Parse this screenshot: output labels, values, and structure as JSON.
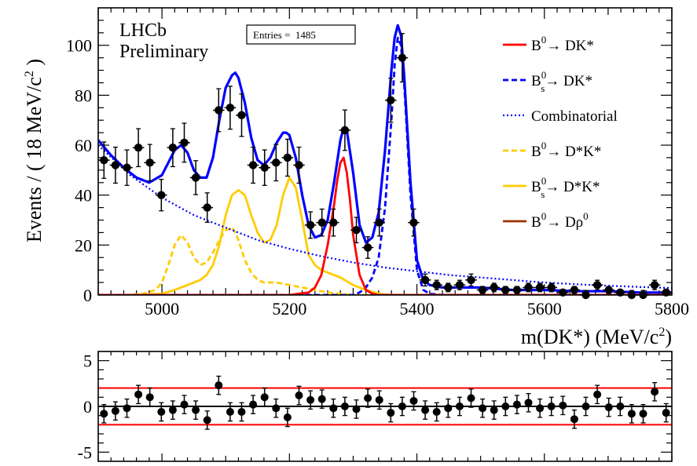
{
  "chart_data": [
    {
      "type": "scatter",
      "title": "",
      "annotations": [
        "LHCb",
        "Preliminary"
      ],
      "stats_box": "Entries =  1485",
      "xlabel": "m(DK*) (MeV/c2)",
      "ylabel": "Events / ( 18 MeV/c2 )",
      "xlim": [
        4900,
        5800
      ],
      "ylim": [
        0,
        115
      ],
      "x_ticks": [
        5000,
        5200,
        5400,
        5600,
        5800
      ],
      "y_ticks": [
        0,
        20,
        40,
        60,
        80,
        100
      ],
      "legend_position": "right",
      "legend": [
        {
          "label": "B0→ DK*",
          "color": "#ff0000",
          "style": "solid"
        },
        {
          "label": "Bs0→ DK*",
          "color": "#0000ff",
          "style": "dashed"
        },
        {
          "label": "Combinatorial",
          "color": "#0000ff",
          "style": "dotted"
        },
        {
          "label": "B0→ D*K*",
          "color": "#ffcc00",
          "style": "dashed"
        },
        {
          "label": "Bs0→ D*K*",
          "color": "#ffcc00",
          "style": "solid"
        },
        {
          "label": "B0→ Dρ0",
          "color": "#993300",
          "style": "solid"
        }
      ],
      "data_points": {
        "x": [
          4909,
          4927,
          4945,
          4963,
          4981,
          4999,
          5017,
          5035,
          5053,
          5071,
          5089,
          5107,
          5125,
          5143,
          5161,
          5179,
          5197,
          5215,
          5233,
          5251,
          5269,
          5287,
          5305,
          5323,
          5341,
          5359,
          5377,
          5395,
          5413,
          5431,
          5449,
          5467,
          5485,
          5503,
          5521,
          5539,
          5557,
          5575,
          5593,
          5611,
          5629,
          5647,
          5665,
          5683,
          5701,
          5719,
          5737,
          5755,
          5773,
          5791
        ],
        "y": [
          54,
          52,
          51,
          59,
          53,
          40,
          59,
          61,
          47,
          35,
          74,
          75,
          72,
          52,
          51,
          53,
          55,
          52,
          28,
          29,
          29,
          66,
          26,
          19,
          29,
          78,
          95,
          29,
          6,
          4,
          3,
          4,
          6,
          2,
          3,
          2,
          2,
          3,
          3,
          3,
          1,
          2,
          0,
          4,
          2,
          1,
          0,
          0,
          4,
          1
        ],
        "error_low": [
          7.3,
          7.2,
          7.1,
          7.6,
          7.3,
          6.3,
          7.6,
          7.8,
          6.8,
          5.9,
          8.6,
          8.6,
          8.5,
          7.2,
          7.1,
          7.3,
          7.4,
          7.2,
          5.3,
          5.4,
          5.4,
          8.1,
          5.1,
          4.3,
          5.4,
          8.8,
          9.7,
          5.4,
          2.4,
          1.9,
          1.7,
          1.9,
          2.4,
          1.4,
          1.7,
          1.4,
          1.4,
          1.7,
          1.7,
          1.7,
          1.0,
          1.4,
          0,
          1.9,
          1.4,
          1.0,
          0,
          0,
          1.9,
          1.0
        ],
        "error_high": [
          7.3,
          7.2,
          7.1,
          7.6,
          7.3,
          6.3,
          7.6,
          7.8,
          6.8,
          5.9,
          8.6,
          8.6,
          8.5,
          7.2,
          7.1,
          7.3,
          7.4,
          7.2,
          5.3,
          5.4,
          5.4,
          8.1,
          5.1,
          4.3,
          5.4,
          8.8,
          9.7,
          5.4,
          2.4,
          1.9,
          1.7,
          1.9,
          2.4,
          1.4,
          1.7,
          1.4,
          1.4,
          1.7,
          1.7,
          1.7,
          1.0,
          1.4,
          1.8,
          1.9,
          1.4,
          1.0,
          1.8,
          1.8,
          1.9,
          1.0
        ]
      },
      "curves": [
        {
          "name": "Total fit",
          "color": "#0000ff",
          "style": "solid",
          "x": [
            4900,
            4920,
            4940,
            4960,
            4980,
            5000,
            5010,
            5020,
            5030,
            5040,
            5050,
            5060,
            5070,
            5080,
            5090,
            5100,
            5110,
            5115,
            5120,
            5130,
            5140,
            5150,
            5160,
            5170,
            5180,
            5190,
            5195,
            5200,
            5210,
            5220,
            5230,
            5240,
            5250,
            5260,
            5270,
            5280,
            5285,
            5290,
            5300,
            5310,
            5320,
            5330,
            5340,
            5350,
            5360,
            5365,
            5370,
            5375,
            5380,
            5390,
            5400,
            5410,
            5420,
            5440,
            5460,
            5500,
            5550,
            5600,
            5650,
            5700,
            5750,
            5800
          ],
          "y": [
            62,
            56,
            51,
            47,
            45,
            48,
            53,
            58,
            60,
            57,
            50,
            47,
            47,
            55,
            70,
            83,
            88,
            89,
            87,
            77,
            63,
            54,
            52,
            55,
            61,
            65,
            65,
            64,
            55,
            40,
            28,
            23,
            24,
            30,
            45,
            62,
            67,
            66,
            49,
            28,
            21,
            23,
            33,
            58,
            90,
            103,
            108,
            104,
            88,
            45,
            14,
            6,
            4,
            3,
            3,
            3,
            2,
            2,
            1.5,
            1.5,
            1,
            1
          ]
        },
        {
          "name": "B0→ DK*",
          "color": "#ff0000",
          "style": "solid",
          "x": [
            4900,
            5200,
            5230,
            5240,
            5250,
            5260,
            5270,
            5275,
            5280,
            5285,
            5290,
            5295,
            5300,
            5310,
            5320,
            5330,
            5340,
            5800
          ],
          "y": [
            0,
            0,
            1,
            3,
            8,
            20,
            36,
            46,
            53,
            55,
            49,
            38,
            24,
            8,
            2,
            0.5,
            0,
            0
          ]
        },
        {
          "name": "Bs0→ DK*",
          "color": "#0000ff",
          "style": "dashed",
          "x": [
            4900,
            5300,
            5310,
            5320,
            5330,
            5340,
            5350,
            5360,
            5365,
            5370,
            5375,
            5380,
            5390,
            5400,
            5410,
            5420,
            5440,
            5800
          ],
          "y": [
            0,
            0,
            1,
            3,
            7,
            15,
            35,
            70,
            92,
            103,
            100,
            85,
            40,
            10,
            2,
            0.5,
            0,
            0
          ]
        },
        {
          "name": "Combinatorial",
          "color": "#0000ff",
          "style": "dotted",
          "x": [
            4900,
            4950,
            5000,
            5050,
            5100,
            5150,
            5200,
            5250,
            5300,
            5350,
            5400,
            5450,
            5500,
            5550,
            5600,
            5650,
            5700,
            5750,
            5800
          ],
          "y": [
            60,
            48,
            39,
            32,
            27,
            22,
            18.5,
            15.5,
            13,
            11,
            9.5,
            8,
            7,
            6,
            5,
            4.3,
            3.7,
            3.2,
            2.8
          ]
        },
        {
          "name": "B0→ D*K*",
          "color": "#ffcc00",
          "style": "dashed",
          "x": [
            4900,
            4950,
            4970,
            4990,
            5000,
            5010,
            5020,
            5030,
            5040,
            5050,
            5060,
            5070,
            5080,
            5090,
            5100,
            5110,
            5115,
            5120,
            5130,
            5140,
            5150,
            5160,
            5180,
            5200,
            5220,
            5240,
            5260,
            5280,
            5300,
            5800
          ],
          "y": [
            0,
            0,
            0.5,
            2,
            5,
            12,
            20,
            24,
            21,
            15,
            12,
            13,
            17,
            22,
            26,
            27,
            25,
            22,
            14,
            9,
            6,
            5,
            5,
            4,
            3,
            2,
            1,
            0.5,
            0,
            0
          ]
        },
        {
          "name": "Bs0→ D*K*",
          "color": "#ffcc00",
          "style": "solid",
          "x": [
            4900,
            4950,
            5000,
            5020,
            5040,
            5060,
            5070,
            5080,
            5090,
            5100,
            5110,
            5120,
            5130,
            5140,
            5150,
            5160,
            5170,
            5180,
            5190,
            5200,
            5210,
            5220,
            5230,
            5240,
            5250,
            5260,
            5280,
            5300,
            5320,
            5340,
            5360,
            5800
          ],
          "y": [
            0,
            0,
            0.5,
            2,
            4,
            6,
            8,
            12,
            20,
            32,
            40,
            42,
            40,
            32,
            25,
            21,
            22,
            28,
            40,
            47,
            43,
            30,
            16,
            12,
            10,
            9,
            7,
            4,
            2,
            0.5,
            0,
            0
          ]
        },
        {
          "name": "B0→ Dρ0",
          "color": "#993300",
          "style": "solid",
          "x": [
            4900,
            5250,
            5280,
            5300,
            5320,
            5330,
            5340,
            5360,
            5380,
            5420,
            5800
          ],
          "y": [
            0,
            0,
            0.3,
            1,
            2,
            2,
            1.5,
            0.8,
            0.3,
            0,
            0
          ]
        }
      ]
    },
    {
      "type": "scatter",
      "title": "",
      "xlabel": "",
      "ylabel": "",
      "xlim": [
        4900,
        5800
      ],
      "ylim": [
        -6,
        6
      ],
      "y_ticks": [
        -5,
        0,
        5
      ],
      "reference_lines": [
        {
          "y": 0,
          "color": "#000000"
        },
        {
          "y": 2,
          "color": "#ff0000"
        },
        {
          "y": -2,
          "color": "#ff0000"
        }
      ],
      "residuals": {
        "x": [
          4909,
          4927,
          4945,
          4963,
          4981,
          4999,
          5017,
          5035,
          5053,
          5071,
          5089,
          5107,
          5125,
          5143,
          5161,
          5179,
          5197,
          5215,
          5233,
          5251,
          5269,
          5287,
          5305,
          5323,
          5341,
          5359,
          5377,
          5395,
          5413,
          5431,
          5449,
          5467,
          5485,
          5503,
          5521,
          5539,
          5557,
          5575,
          5593,
          5611,
          5629,
          5647,
          5665,
          5683,
          5701,
          5719,
          5737,
          5755,
          5773,
          5791
        ],
        "y": [
          -0.8,
          -0.5,
          -0.2,
          1.3,
          1.0,
          -0.6,
          -0.4,
          0.2,
          -0.4,
          -1.5,
          2.3,
          -0.6,
          -0.6,
          0.2,
          1.0,
          -0.2,
          -1.2,
          1.2,
          0.7,
          0.8,
          -0.2,
          0.0,
          -0.3,
          0.9,
          0.7,
          -0.7,
          0.0,
          0.6,
          -0.4,
          -0.6,
          -0.2,
          0.0,
          0.9,
          -0.2,
          -0.4,
          0.0,
          0.2,
          0.4,
          -0.2,
          0.0,
          0.1,
          -1.4,
          0.0,
          1.3,
          -0.1,
          0.0,
          -0.8,
          -0.8,
          1.6,
          -0.7
        ],
        "error": [
          1,
          1,
          1,
          1,
          1,
          1,
          1,
          1,
          1,
          1,
          1,
          1,
          1,
          1,
          1,
          1,
          1,
          1,
          1,
          1,
          1,
          1,
          1,
          1,
          1,
          1,
          1,
          1,
          1,
          1,
          1,
          1,
          1,
          1,
          1,
          1,
          1,
          1,
          1,
          1,
          1,
          1,
          1,
          1,
          1,
          1,
          1,
          1,
          1,
          1
        ]
      }
    }
  ],
  "colors": {
    "signal_b0": "#ff0000",
    "blue": "#0000ff",
    "partial_reco": "#ffcc00",
    "drho": "#993300",
    "band": "#ff0000"
  }
}
